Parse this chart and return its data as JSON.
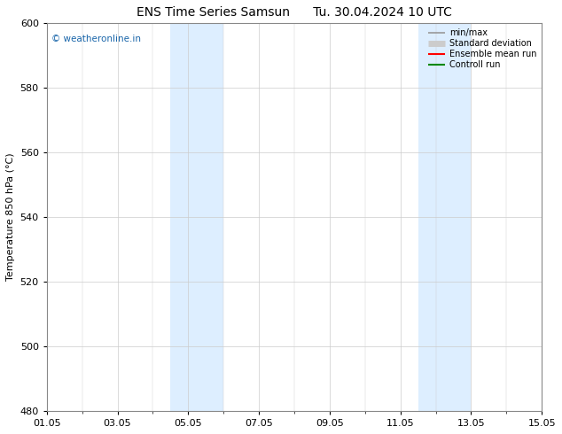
{
  "title": "ENS Time Series Samsun",
  "title2": "Tu. 30.04.2024 10 UTC",
  "ylabel": "Temperature 850 hPa (°C)",
  "ylim": [
    480,
    600
  ],
  "yticks": [
    480,
    500,
    520,
    540,
    560,
    580,
    600
  ],
  "xlim": [
    0,
    14
  ],
  "xtick_labels": [
    "01.05",
    "03.05",
    "05.05",
    "07.05",
    "09.05",
    "11.05",
    "13.05",
    "15.05"
  ],
  "xtick_positions": [
    0,
    2,
    4,
    6,
    8,
    10,
    12,
    14
  ],
  "shaded_bands": [
    {
      "xstart": 3.5,
      "xend": 5.0,
      "color": "#ddeeff"
    },
    {
      "xstart": 10.5,
      "xend": 12.0,
      "color": "#ddeeff"
    }
  ],
  "watermark": "© weatheronline.in",
  "watermark_color": "#1a66aa",
  "background_color": "#ffffff",
  "grid_color": "#cccccc",
  "title_fontsize": 10,
  "tick_fontsize": 8,
  "ylabel_fontsize": 8,
  "legend_labels": [
    "min/max",
    "Standard deviation",
    "Ensemble mean run",
    "Controll run"
  ],
  "legend_colors": [
    "#999999",
    "#cccccc",
    "#ff0000",
    "#008800"
  ],
  "legend_lw": [
    1.2,
    5,
    1.5,
    1.5
  ]
}
